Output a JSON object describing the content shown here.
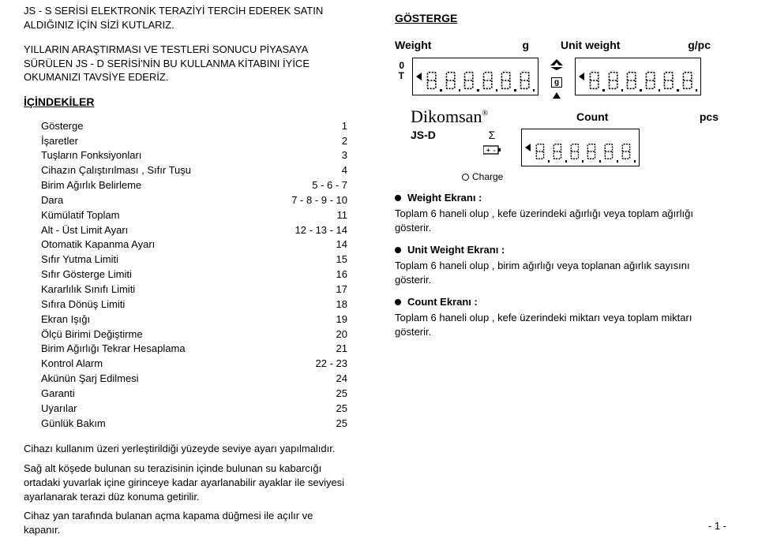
{
  "intro": {
    "p1": "JS - S SERİSİ ELEKTRONİK TERAZİYİ TERCİH EDEREK SATIN ALDIĞINIZ İÇİN SİZİ KUTLARIZ.",
    "p2": "YILLARIN ARAŞTIRMASI VE TESTLERİ SONUCU PİYASAYA SÜRÜLEN JS - D SERİSİ'NİN BU KULLANMA KİTABINI İYİCE OKUMANIZI TAVSİYE EDERİZ."
  },
  "section_toc": "İÇİNDEKİLER",
  "toc": [
    {
      "t": "Gösterge",
      "p": "1"
    },
    {
      "t": "İşaretler",
      "p": "2"
    },
    {
      "t": "Tuşların Fonksiyonları",
      "p": "3"
    },
    {
      "t": "Cihazın Çalıştırılması , Sıfır Tuşu",
      "p": "4"
    },
    {
      "t": "Birim Ağırlık Belirleme",
      "p": "5 - 6 - 7"
    },
    {
      "t": "Dara",
      "p": "7 - 8 - 9 - 10"
    },
    {
      "t": "Kümülatif Toplam",
      "p": "11"
    },
    {
      "t": "Alt - Üst Limit Ayarı",
      "p": "12 - 13 - 14"
    },
    {
      "t": "Otomatik Kapanma Ayarı",
      "p": "14"
    },
    {
      "t": "Sıfır Yutma Limiti",
      "p": "15"
    },
    {
      "t": "Sıfır Gösterge Limiti",
      "p": "16"
    },
    {
      "t": "Kararlılık Sınıfı Limiti",
      "p": "17"
    },
    {
      "t": "Sıfıra Dönüş Limiti",
      "p": "18"
    },
    {
      "t": "Ekran Işığı",
      "p": "19"
    },
    {
      "t": "Ölçü Birimi Değiştirme",
      "p": "20"
    },
    {
      "t": "Birim Ağırlığı Tekrar Hesaplama",
      "p": "21"
    },
    {
      "t": "Kontrol Alarm",
      "p": "22 - 23"
    },
    {
      "t": "Akünün Şarj Edilmesi",
      "p": "24"
    },
    {
      "t": "Garanti",
      "p": "25"
    },
    {
      "t": "Uyarılar",
      "p": "25"
    },
    {
      "t": "Günlük Bakım",
      "p": "25"
    }
  ],
  "note": {
    "p1": "Cihazı kullanım üzeri yerleştirildiği yüzeyde seviye ayarı yapılmalıdır.",
    "p2": "Sağ alt köşede bulunan su terazisinin içinde bulunan su kabarcığı ortadaki yuvarlak içine girinceye kadar ayarlanabilir ayaklar ile seviyesi ayarlanarak terazi düz konuma getirilir.",
    "p3": "Cihaz yan tarafında bulanan açma kapama düğmesi ile açılır ve kapanır."
  },
  "section_disp": "GÖSTERGE",
  "labels": {
    "weight": "Weight",
    "g": "g",
    "unit": "Unit weight",
    "gpc": "g/pc",
    "zero": "0",
    "T": "T",
    "count": "Count",
    "pcs": "pcs",
    "brand": "Dikomsan",
    "jsd": "JS-D",
    "sigma": "Σ",
    "charge": "Charge",
    "g_icon": "g"
  },
  "bullets": [
    {
      "h": "Weight Ekranı :",
      "d": "Toplam 6 haneli olup , kefe üzerindeki ağırlığı veya toplam ağırlığı gösterir."
    },
    {
      "h": "Unit Weight Ekranı :",
      "d": "Toplam 6 haneli olup , birim ağırlığı veya toplanan ağırlık sayısını gösterir."
    },
    {
      "h": "Count Ekranı :",
      "d": "Toplam 6 haneli olup , kefe üzerindeki miktarı veya toplam miktarı gösterir."
    }
  ],
  "page_num": "- 1 -",
  "display": {
    "digits_big": 6,
    "digits_small": 6,
    "border_color": "#000000",
    "bg": "#ffffff"
  }
}
